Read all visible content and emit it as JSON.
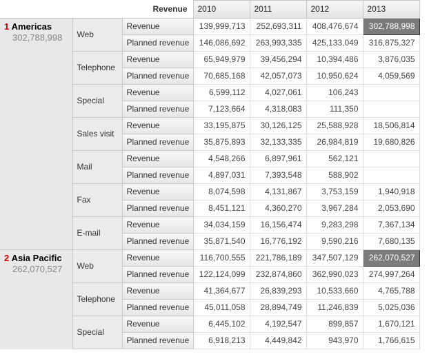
{
  "header": {
    "measure_label": "Revenue",
    "years": [
      "2010",
      "2011",
      "2012",
      "2013"
    ]
  },
  "measures": [
    "Revenue",
    "Planned revenue"
  ],
  "regions": [
    {
      "rank": "1",
      "name": "Americas",
      "total": "302,788,998",
      "channels": [
        {
          "name": "Web",
          "rows": [
            {
              "measure": "Revenue",
              "values": [
                "139,999,713",
                "252,693,311",
                "408,476,674",
                "302,788,998"
              ],
              "highlight": 3
            },
            {
              "measure": "Planned revenue",
              "values": [
                "146,086,692",
                "263,993,335",
                "425,133,049",
                "316,875,327"
              ]
            }
          ]
        },
        {
          "name": "Telephone",
          "rows": [
            {
              "measure": "Revenue",
              "values": [
                "65,949,979",
                "39,456,294",
                "10,394,486",
                "3,876,035"
              ]
            },
            {
              "measure": "Planned revenue",
              "values": [
                "70,685,168",
                "42,057,073",
                "10,950,624",
                "4,059,569"
              ]
            }
          ]
        },
        {
          "name": "Special",
          "rows": [
            {
              "measure": "Revenue",
              "values": [
                "6,599,112",
                "4,027,061",
                "106,243",
                ""
              ]
            },
            {
              "measure": "Planned revenue",
              "values": [
                "7,123,664",
                "4,318,083",
                "111,350",
                ""
              ]
            }
          ]
        },
        {
          "name": "Sales visit",
          "rows": [
            {
              "measure": "Revenue",
              "values": [
                "33,195,875",
                "30,126,125",
                "25,588,928",
                "18,506,814"
              ]
            },
            {
              "measure": "Planned revenue",
              "values": [
                "35,875,893",
                "32,133,335",
                "26,984,819",
                "19,680,826"
              ]
            }
          ]
        },
        {
          "name": "Mail",
          "rows": [
            {
              "measure": "Revenue",
              "values": [
                "4,548,266",
                "6,897,961",
                "562,121",
                ""
              ]
            },
            {
              "measure": "Planned revenue",
              "values": [
                "4,897,031",
                "7,393,548",
                "588,902",
                ""
              ]
            }
          ]
        },
        {
          "name": "Fax",
          "rows": [
            {
              "measure": "Revenue",
              "values": [
                "8,074,598",
                "4,131,867",
                "3,753,159",
                "1,940,918"
              ]
            },
            {
              "measure": "Planned revenue",
              "values": [
                "8,451,121",
                "4,360,270",
                "3,967,284",
                "2,053,690"
              ]
            }
          ]
        },
        {
          "name": "E-mail",
          "rows": [
            {
              "measure": "Revenue",
              "values": [
                "34,034,159",
                "16,156,474",
                "9,283,298",
                "7,367,134"
              ]
            },
            {
              "measure": "Planned revenue",
              "values": [
                "35,871,540",
                "16,776,192",
                "9,590,216",
                "7,680,135"
              ]
            }
          ]
        }
      ]
    },
    {
      "rank": "2",
      "name": "Asia Pacific",
      "total": "262,070,527",
      "channels": [
        {
          "name": "Web",
          "rows": [
            {
              "measure": "Revenue",
              "values": [
                "116,700,555",
                "221,786,189",
                "347,507,129",
                "262,070,527"
              ],
              "highlight": 3
            },
            {
              "measure": "Planned revenue",
              "values": [
                "122,124,099",
                "232,874,860",
                "362,990,023",
                "274,997,264"
              ]
            }
          ]
        },
        {
          "name": "Telephone",
          "rows": [
            {
              "measure": "Revenue",
              "values": [
                "41,364,677",
                "26,839,293",
                "10,533,660",
                "4,765,788"
              ]
            },
            {
              "measure": "Planned revenue",
              "values": [
                "45,011,058",
                "28,894,749",
                "11,246,839",
                "5,025,036"
              ]
            }
          ]
        },
        {
          "name": "Special",
          "rows": [
            {
              "measure": "Revenue",
              "values": [
                "6,445,102",
                "4,192,547",
                "899,857",
                "1,670,121"
              ]
            },
            {
              "measure": "Planned revenue",
              "values": [
                "6,918,213",
                "4,449,842",
                "943,970",
                "1,766,615"
              ]
            }
          ]
        }
      ]
    }
  ]
}
